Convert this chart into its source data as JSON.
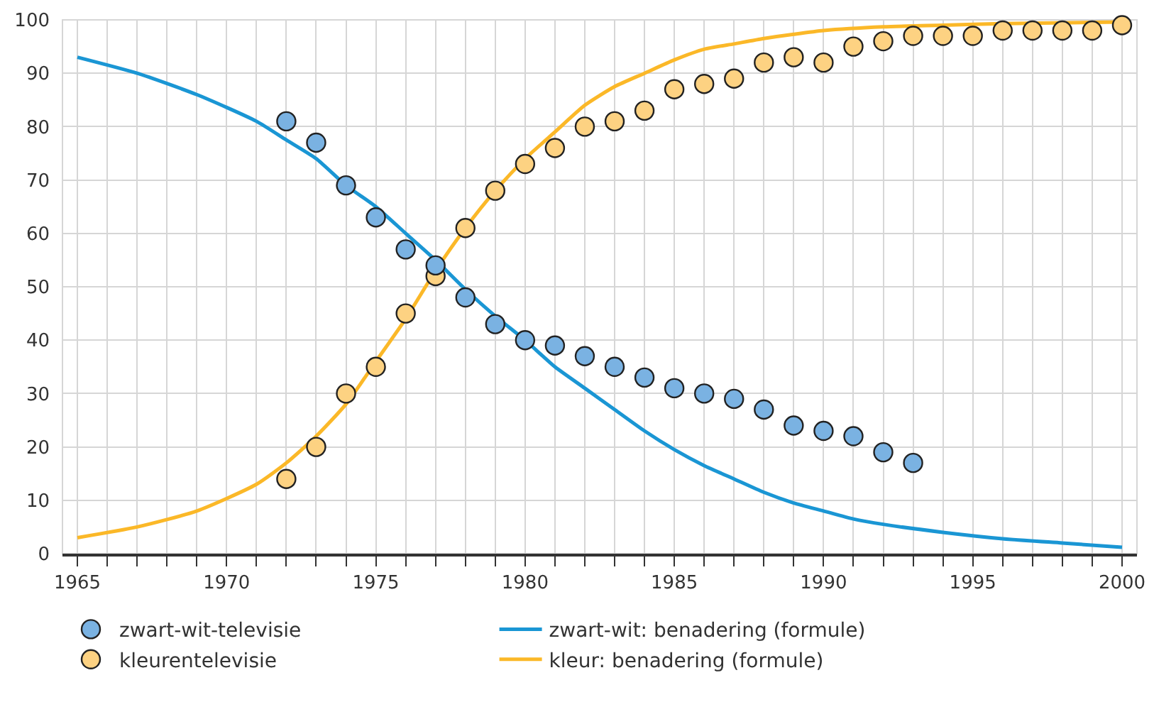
{
  "chart_data": {
    "type": "scatter",
    "xlim": [
      1964.5,
      2000.5
    ],
    "ylim": [
      0,
      100
    ],
    "xticks": [
      {
        "value": 1965,
        "label": "1965"
      },
      {
        "value": 1966,
        "label": null
      },
      {
        "value": 1967,
        "label": null
      },
      {
        "value": 1968,
        "label": null
      },
      {
        "value": 1969,
        "label": null
      },
      {
        "value": 1970,
        "label": "1970"
      },
      {
        "value": 1971,
        "label": null
      },
      {
        "value": 1972,
        "label": null
      },
      {
        "value": 1973,
        "label": null
      },
      {
        "value": 1974,
        "label": null
      },
      {
        "value": 1975,
        "label": "1975"
      },
      {
        "value": 1976,
        "label": null
      },
      {
        "value": 1977,
        "label": null
      },
      {
        "value": 1978,
        "label": null
      },
      {
        "value": 1979,
        "label": null
      },
      {
        "value": 1980,
        "label": "1980"
      },
      {
        "value": 1981,
        "label": null
      },
      {
        "value": 1982,
        "label": null
      },
      {
        "value": 1983,
        "label": null
      },
      {
        "value": 1984,
        "label": null
      },
      {
        "value": 1985,
        "label": "1985"
      },
      {
        "value": 1986,
        "label": null
      },
      {
        "value": 1987,
        "label": null
      },
      {
        "value": 1988,
        "label": null
      },
      {
        "value": 1989,
        "label": null
      },
      {
        "value": 1990,
        "label": "1990"
      },
      {
        "value": 1991,
        "label": null
      },
      {
        "value": 1992,
        "label": null
      },
      {
        "value": 1993,
        "label": null
      },
      {
        "value": 1994,
        "label": null
      },
      {
        "value": 1995,
        "label": "1995"
      },
      {
        "value": 1996,
        "label": null
      },
      {
        "value": 1997,
        "label": null
      },
      {
        "value": 1998,
        "label": null
      },
      {
        "value": 1999,
        "label": null
      },
      {
        "value": 2000,
        "label": "2000"
      }
    ],
    "yticks": [
      0,
      10,
      20,
      30,
      40,
      50,
      60,
      70,
      80,
      90,
      100
    ],
    "grid": true,
    "legend": "bottom",
    "series": [
      {
        "marker": "circle",
        "name": "zwart-wit-televisie",
        "color": "#7ab2e2",
        "x": [
          1972,
          1973,
          1974,
          1975,
          1976,
          1977,
          1978,
          1979,
          1980,
          1981,
          1982,
          1983,
          1984,
          1985,
          1986,
          1987,
          1988,
          1989,
          1990,
          1991,
          1992,
          1993
        ],
        "values": [
          81,
          77,
          69,
          63,
          57,
          54,
          48,
          43,
          40,
          39,
          37,
          35,
          33,
          31,
          30,
          29,
          27,
          24,
          23,
          22,
          19,
          17
        ]
      },
      {
        "type": "line",
        "marker": "none",
        "name": "zwart-wit: benadering (formule)",
        "color": "#1a96d4",
        "x": [
          1965,
          1967,
          1969,
          1971,
          1972,
          1973,
          1974,
          1975,
          1976,
          1977,
          1978,
          1979,
          1980,
          1981,
          1982,
          1983,
          1984,
          1985,
          1986,
          1987,
          1988,
          1989,
          1990,
          1991,
          1992,
          1994,
          1996,
          1998,
          2000
        ],
        "values": [
          93,
          90,
          86,
          81,
          77.5,
          74,
          69,
          65,
          60,
          55,
          49.5,
          44.5,
          40,
          35,
          31,
          27,
          23,
          19.5,
          16.5,
          14,
          11.5,
          9.5,
          8,
          6.5,
          5.5,
          4,
          2.8,
          2,
          1.2
        ]
      },
      {
        "marker": "circle",
        "name": "kleurentelevisie",
        "color": "#fdd282",
        "x": [
          1972,
          1973,
          1974,
          1975,
          1976,
          1977,
          1978,
          1979,
          1980,
          1981,
          1982,
          1983,
          1984,
          1985,
          1986,
          1987,
          1988,
          1989,
          1990,
          1991,
          1992,
          1993,
          1994,
          1995,
          1996,
          1997,
          1998,
          1999,
          2000
        ],
        "values": [
          14,
          20,
          30,
          35,
          45,
          52,
          61,
          68,
          73,
          76,
          80,
          81,
          83,
          87,
          88,
          89,
          92,
          93,
          92,
          95,
          96,
          97,
          97,
          97,
          98,
          98,
          98,
          98,
          99
        ]
      },
      {
        "type": "line",
        "marker": "none",
        "name": "kleur: benadering (formule)",
        "color": "#fbb828",
        "x": [
          1965,
          1967,
          1969,
          1971,
          1972,
          1973,
          1974,
          1975,
          1976,
          1977,
          1978,
          1979,
          1980,
          1981,
          1982,
          1983,
          1984,
          1985,
          1986,
          1987,
          1988,
          1989,
          1990,
          1992,
          1994,
          1996,
          2000
        ],
        "values": [
          3,
          5,
          8,
          13,
          17,
          22,
          28,
          36,
          44,
          53,
          61,
          68,
          74,
          79,
          84,
          87.5,
          90,
          92.5,
          94.5,
          95.5,
          96.5,
          97.3,
          98,
          98.7,
          99,
          99.3,
          99.6
        ]
      }
    ]
  }
}
